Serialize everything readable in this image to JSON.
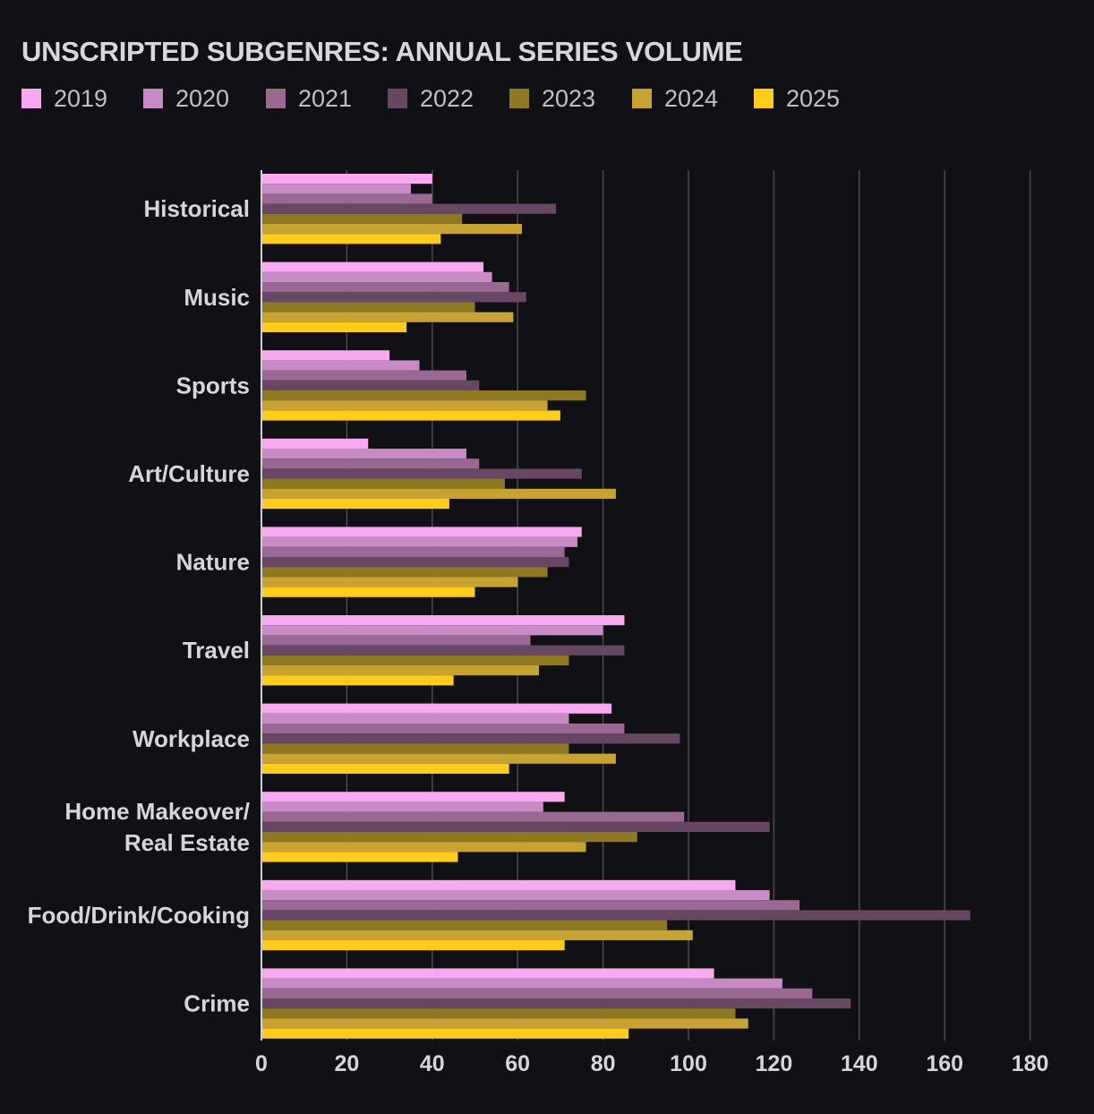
{
  "chart_data": {
    "type": "bar",
    "orientation": "horizontal",
    "title": "UNSCRIPTED SUBGENRES: ANNUAL SERIES VOLUME",
    "xlabel": "",
    "ylabel": "",
    "xlim": [
      0,
      180
    ],
    "ticks": [
      0,
      20,
      40,
      60,
      80,
      100,
      120,
      140,
      160,
      180
    ],
    "grid": "vertical",
    "legend_position": "top-left",
    "categories": [
      "Historical",
      "Music",
      "Sports",
      "Art/Culture",
      "Nature",
      "Travel",
      "Workplace",
      "Home Makeover/\nReal Estate",
      "Food/Drink/Cooking",
      "Crime"
    ],
    "series": [
      {
        "name": "2019",
        "color": "#f9a9ef",
        "values": [
          40,
          52,
          30,
          25,
          75,
          85,
          82,
          71,
          111,
          106
        ]
      },
      {
        "name": "2020",
        "color": "#c88bc6",
        "values": [
          35,
          54,
          37,
          48,
          74,
          80,
          72,
          66,
          119,
          122
        ]
      },
      {
        "name": "2021",
        "color": "#9a6991",
        "values": [
          40,
          58,
          48,
          51,
          71,
          63,
          85,
          99,
          126,
          129
        ]
      },
      {
        "name": "2022",
        "color": "#664864",
        "values": [
          69,
          62,
          51,
          75,
          72,
          85,
          98,
          119,
          166,
          138
        ]
      },
      {
        "name": "2023",
        "color": "#8f7a24",
        "values": [
          47,
          50,
          76,
          57,
          67,
          72,
          72,
          88,
          95,
          111
        ]
      },
      {
        "name": "2024",
        "color": "#c7a334",
        "values": [
          61,
          59,
          67,
          83,
          60,
          65,
          83,
          76,
          101,
          114
        ]
      },
      {
        "name": "2025",
        "color": "#ffcc1b",
        "values": [
          42,
          34,
          70,
          44,
          50,
          45,
          58,
          46,
          71,
          86
        ]
      }
    ]
  }
}
